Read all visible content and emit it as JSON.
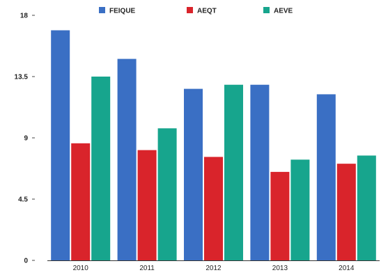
{
  "chart_data": {
    "type": "bar",
    "title": "",
    "xlabel": "",
    "ylabel": "",
    "categories": [
      "2010",
      "2011",
      "2012",
      "2013",
      "2014"
    ],
    "series": [
      {
        "name": "FEIQUE",
        "color": "#3A6FC4",
        "values": [
          16.9,
          14.8,
          12.6,
          12.9,
          12.2
        ]
      },
      {
        "name": "AEQT",
        "color": "#D9242B",
        "values": [
          8.6,
          8.1,
          7.6,
          6.5,
          7.1
        ]
      },
      {
        "name": "AEVE",
        "color": "#17A58D",
        "values": [
          13.5,
          9.7,
          12.9,
          7.4,
          7.7
        ]
      }
    ],
    "ylim": [
      0,
      18
    ],
    "yticks": [
      "0",
      "4.5",
      "9",
      "13.5",
      "18"
    ],
    "grid": false,
    "legend_position": "top"
  }
}
